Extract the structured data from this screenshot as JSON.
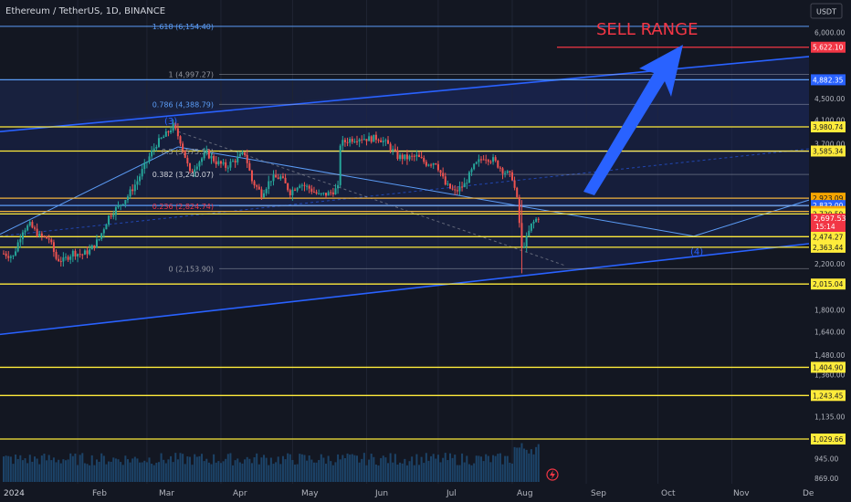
{
  "header": {
    "symbol": "Ethereum / TetherUS, 1D, BINANCE",
    "currency": "USDT"
  },
  "annotations": {
    "sell_range": "SELL RANGE",
    "wave_3": "(3)",
    "wave_4": "(4)"
  },
  "colors": {
    "background": "#131722",
    "up_candle": "#26a69a",
    "down_candle": "#ef5350",
    "yellow_level": "#ffeb3b",
    "blue_line": "#2962ff",
    "sell_line": "#f23645",
    "arrow": "#2962ff"
  },
  "price_axis": {
    "ticks": [
      "6,000.00",
      "4,500.00",
      "4,100.00",
      "3,700.00",
      "2,200.00",
      "1,800.00",
      "1,640.00",
      "1,480.00",
      "1,360.00",
      "1,135.00",
      "945.00",
      "869.00"
    ]
  },
  "time_axis": {
    "labels": [
      "2024",
      "Feb",
      "Mar",
      "Apr",
      "May",
      "Jun",
      "Jul",
      "Aug",
      "Sep",
      "Oct",
      "Nov",
      "De"
    ]
  },
  "chart_data": {
    "type": "candlestick",
    "title": "Ethereum / TetherUS, 1D, BINANCE",
    "y_scale": "log",
    "ylim": [
      850,
      6500
    ],
    "x_range": [
      "2024-01-01",
      "2024-12-31"
    ],
    "current_price": "2,697.53",
    "countdown": "15:14",
    "horizontal_levels": [
      {
        "price": 5622.1,
        "label": "5,622.10",
        "kind": "sell"
      },
      {
        "price": 4882.35,
        "label": "4,882.35",
        "kind": "blue"
      },
      {
        "price": 3980.74,
        "label": "3,980.74",
        "kind": "yellow"
      },
      {
        "price": 3585.34,
        "label": "3,585.34",
        "kind": "yellow"
      },
      {
        "price": 2923.09,
        "label": "2,923.09",
        "kind": "orange"
      },
      {
        "price": 2832.0,
        "label": "2,832.00",
        "kind": "blue"
      },
      {
        "price": 2759.92,
        "label": "2,759.92",
        "kind": "orange"
      },
      {
        "price": 2730.59,
        "label": "2,730.59",
        "kind": "yellow"
      },
      {
        "price": 2474.27,
        "label": "2,474.27",
        "kind": "yellow"
      },
      {
        "price": 2363.44,
        "label": "2,363.44",
        "kind": "yellow"
      },
      {
        "price": 2015.04,
        "label": "2,015.04",
        "kind": "yellow"
      },
      {
        "price": 1404.9,
        "label": "1,404.90",
        "kind": "yellow"
      },
      {
        "price": 1243.45,
        "label": "1,243.45",
        "kind": "yellow"
      },
      {
        "price": 1029.66,
        "label": "1,029.66",
        "kind": "yellow"
      }
    ],
    "fib_levels": [
      {
        "label": "1.618 (6,154.40)",
        "price": 6154.4
      },
      {
        "label": "1 (4,997.27)",
        "price": 4997.27
      },
      {
        "label": "0.786 (4,388.79)",
        "price": 4388.79
      },
      {
        "label": "0.5 (3,575.59)",
        "price": 3575.59
      },
      {
        "label": "0.382 (3,240.07)",
        "price": 3240.07
      },
      {
        "label": "0.236 (2,824.74)",
        "price": 2824.74
      },
      {
        "label": "0 (2,153.90)",
        "price": 2153.9
      }
    ],
    "close_path": [
      [
        "2024-01-01",
        2300
      ],
      [
        "2024-01-05",
        2270
      ],
      [
        "2024-01-09",
        2550
      ],
      [
        "2024-01-12",
        2600
      ],
      [
        "2024-01-16",
        2480
      ],
      [
        "2024-01-20",
        2450
      ],
      [
        "2024-01-23",
        2250
      ],
      [
        "2024-01-26",
        2230
      ],
      [
        "2024-01-30",
        2310
      ],
      [
        "2024-02-03",
        2290
      ],
      [
        "2024-02-06",
        2330
      ],
      [
        "2024-02-10",
        2450
      ],
      [
        "2024-02-14",
        2700
      ],
      [
        "2024-02-18",
        2820
      ],
      [
        "2024-02-22",
        2950
      ],
      [
        "2024-02-26",
        3150
      ],
      [
        "2024-03-01",
        3430
      ],
      [
        "2024-03-05",
        3700
      ],
      [
        "2024-03-09",
        3850
      ],
      [
        "2024-03-12",
        4000
      ],
      [
        "2024-03-15",
        3750
      ],
      [
        "2024-03-19",
        3250
      ],
      [
        "2024-03-22",
        3400
      ],
      [
        "2024-03-26",
        3550
      ],
      [
        "2024-03-30",
        3420
      ],
      [
        "2024-04-03",
        3350
      ],
      [
        "2024-04-07",
        3450
      ],
      [
        "2024-04-11",
        3550
      ],
      [
        "2024-04-14",
        3150
      ],
      [
        "2024-04-18",
        2980
      ],
      [
        "2024-04-22",
        3180
      ],
      [
        "2024-04-26",
        3200
      ],
      [
        "2024-04-30",
        3000
      ],
      [
        "2024-05-04",
        3120
      ],
      [
        "2024-05-08",
        3050
      ],
      [
        "2024-05-12",
        2960
      ],
      [
        "2024-05-16",
        2980
      ],
      [
        "2024-05-20",
        3050
      ],
      [
        "2024-05-21",
        3700
      ],
      [
        "2024-05-25",
        3770
      ],
      [
        "2024-05-29",
        3800
      ],
      [
        "2024-06-02",
        3780
      ],
      [
        "2024-06-06",
        3800
      ],
      [
        "2024-06-10",
        3680
      ],
      [
        "2024-06-14",
        3500
      ],
      [
        "2024-06-18",
        3480
      ],
      [
        "2024-06-22",
        3500
      ],
      [
        "2024-06-26",
        3400
      ],
      [
        "2024-06-30",
        3420
      ],
      [
        "2024-07-04",
        3100
      ],
      [
        "2024-07-08",
        3000
      ],
      [
        "2024-07-12",
        3100
      ],
      [
        "2024-07-16",
        3350
      ],
      [
        "2024-07-20",
        3500
      ],
      [
        "2024-07-24",
        3450
      ],
      [
        "2024-07-28",
        3300
      ],
      [
        "2024-08-01",
        3200
      ],
      [
        "2024-08-03",
        2900
      ],
      [
        "2024-08-05",
        2350
      ],
      [
        "2024-08-07",
        2450
      ],
      [
        "2024-08-09",
        2600
      ],
      [
        "2024-08-12",
        2700
      ]
    ]
  }
}
